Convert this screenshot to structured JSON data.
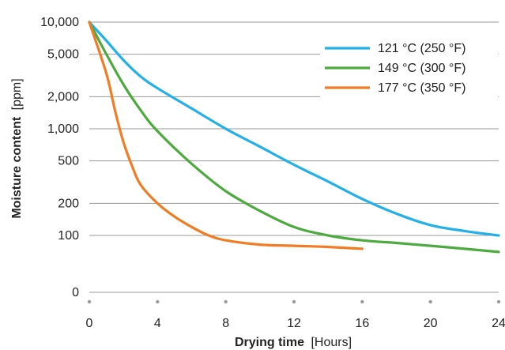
{
  "chart_data": {
    "type": "line",
    "title": "",
    "xlabel_bold": "Drying time",
    "xlabel_unit": "[Hours]",
    "ylabel_bold": "Moisture content",
    "ylabel_unit": "[ppm]",
    "xlim": [
      0,
      24
    ],
    "x_ticks": [
      0,
      4,
      8,
      12,
      16,
      20,
      24
    ],
    "x_tick_labels": [
      "0",
      "4",
      "8",
      "12",
      "16",
      "20",
      "24"
    ],
    "y_scale": "log",
    "y_ticks": [
      0,
      100,
      200,
      500,
      1000,
      2000,
      5000,
      10000
    ],
    "y_tick_labels": [
      "0",
      "100",
      "200",
      "500",
      "1,000",
      "2,000",
      "5,000",
      "10,000"
    ],
    "grid": true,
    "legend_position": "top-right",
    "series": [
      {
        "name": "121 °C (250 °F)",
        "color": "#22b0e8",
        "x": [
          0,
          1,
          2,
          3,
          4,
          6,
          8,
          10,
          12,
          14,
          16,
          18,
          20,
          22,
          24
        ],
        "y": [
          10000,
          6700,
          4400,
          3100,
          2400,
          1550,
          1000,
          680,
          460,
          320,
          220,
          160,
          125,
          110,
          100
        ]
      },
      {
        "name": "149 °C (300 °F)",
        "color": "#4caa3e",
        "x": [
          0,
          1,
          2,
          3,
          4,
          6,
          8,
          10,
          12,
          14,
          16,
          18,
          20,
          22,
          24
        ],
        "y": [
          10000,
          5000,
          2600,
          1500,
          950,
          470,
          260,
          170,
          120,
          100,
          90,
          85,
          80,
          75,
          70
        ]
      },
      {
        "name": "177 °C (350 °F)",
        "color": "#f07c24",
        "x": [
          0,
          1,
          1.5,
          2,
          2.5,
          3,
          4,
          5,
          6,
          7,
          8,
          10,
          12,
          14,
          16
        ],
        "y": [
          10000,
          3300,
          1500,
          750,
          450,
          300,
          200,
          150,
          120,
          100,
          90,
          82,
          80,
          78,
          75
        ]
      }
    ]
  }
}
